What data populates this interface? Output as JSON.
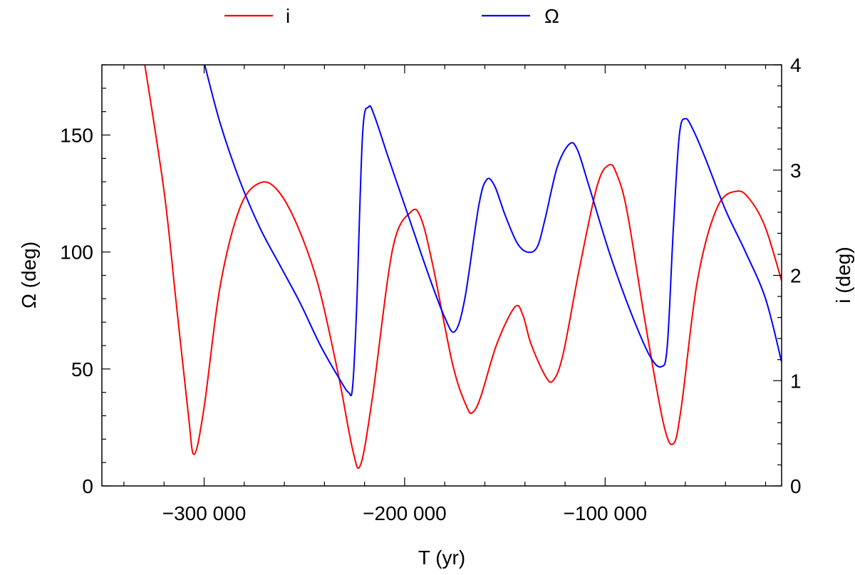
{
  "chart_data": {
    "type": "line",
    "title": "",
    "xlabel": "T (yr)",
    "ylabel_left": "Ω (deg)",
    "ylabel_right": "i (deg)",
    "xlim": [
      -351000,
      -12000
    ],
    "ylim_left": [
      0,
      180
    ],
    "ylim_right": [
      0,
      4
    ],
    "x_ticks": [
      -300000,
      -200000,
      -100000
    ],
    "x_tick_labels": [
      "−300 000",
      "−200 000",
      "−100 000"
    ],
    "y_left_ticks": [
      0,
      50,
      100,
      150
    ],
    "y_left_tick_labels": [
      "0",
      "50",
      "100",
      "150"
    ],
    "y_right_ticks": [
      0,
      1,
      2,
      3,
      4
    ],
    "y_right_tick_labels": [
      "0",
      "1",
      "2",
      "3",
      "4"
    ],
    "grid": false,
    "legend_position": "top-center",
    "series": [
      {
        "name": "i",
        "axis": "right",
        "color": "#ff0000",
        "x": [
          -330000,
          -320000,
          -314000,
          -308000,
          -305000,
          -300000,
          -292000,
          -282000,
          -272000,
          -263000,
          -253000,
          -243000,
          -233000,
          -226000,
          -222000,
          -216000,
          -206000,
          -197000,
          -192000,
          -186000,
          -176000,
          -169000,
          -166000,
          -162000,
          -154000,
          -145000,
          -141000,
          -137000,
          -130000,
          -126000,
          -121000,
          -113000,
          -104000,
          -98000,
          -94000,
          -89000,
          -80000,
          -71000,
          -66000,
          -62000,
          -54000,
          -44000,
          -34000,
          -27000,
          -20000,
          -12000
        ],
        "y": [
          4.05,
          2.8,
          1.75,
          0.7,
          0.3,
          0.75,
          1.9,
          2.65,
          2.88,
          2.8,
          2.45,
          1.9,
          1.05,
          0.35,
          0.2,
          0.85,
          2.25,
          2.6,
          2.55,
          2.1,
          1.15,
          0.75,
          0.7,
          0.85,
          1.35,
          1.7,
          1.62,
          1.35,
          1.05,
          1.0,
          1.25,
          2.05,
          2.85,
          3.05,
          2.95,
          2.6,
          1.55,
          0.6,
          0.4,
          0.75,
          1.95,
          2.65,
          2.8,
          2.7,
          2.45,
          1.95
        ]
      },
      {
        "name": "Ω",
        "axis": "left",
        "color": "#0000ff",
        "x": [
          -300000,
          -292000,
          -282000,
          -272000,
          -262000,
          -252000,
          -242000,
          -232000,
          -228000,
          -226000,
          -224000,
          -221000,
          -218000,
          -215000,
          -208000,
          -198000,
          -188000,
          -180000,
          -175000,
          -170000,
          -163000,
          -159000,
          -155000,
          -150000,
          -144000,
          -139000,
          -134000,
          -130000,
          -124000,
          -118000,
          -114000,
          -108000,
          -98000,
          -88000,
          -78000,
          -72000,
          -69000,
          -66000,
          -63000,
          -60000,
          -56000,
          -50000,
          -40000,
          -30000,
          -20000,
          -12000
        ],
        "y": [
          181,
          155,
          130,
          110,
          94,
          78,
          60,
          45,
          40,
          42,
          75,
          150,
          162,
          158,
          140,
          115,
          90,
          72,
          66,
          80,
          120,
          131,
          128,
          116,
          104,
          100,
          102,
          114,
          136,
          146,
          144,
          128,
          100,
          76,
          56,
          51,
          60,
          110,
          150,
          157,
          152,
          140,
          118,
          100,
          80,
          53
        ]
      }
    ]
  }
}
